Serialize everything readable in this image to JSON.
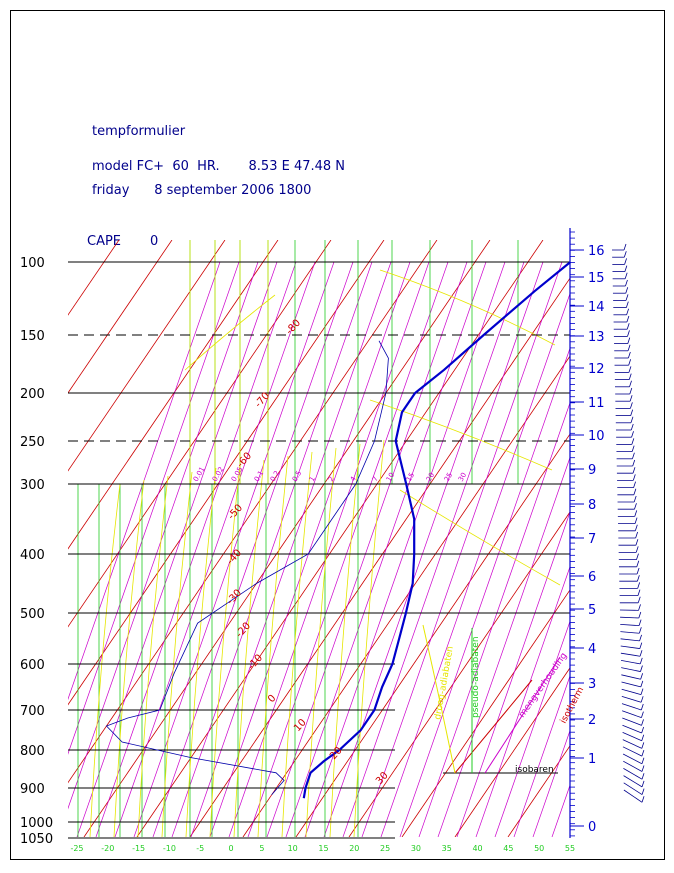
{
  "header": {
    "title": "tempformulier",
    "line2": "model FC+  60  HR.       8.53 E 47.48 N",
    "line3": "friday      8 september 2006 1800"
  },
  "cape": {
    "label": "CAPE",
    "value": "0"
  },
  "colors": {
    "isobar": "#000000",
    "isotherm": "#cc0000",
    "dry_adiabat": "#e6e600",
    "pseudo_adiabat": "#22cc22",
    "mixing_ratio": "#cc00cc",
    "temperature_profile": "#0000cc",
    "dewpoint_profile": "#0000aa",
    "height_scale": "#0000cc",
    "wind_barbs": "#00008b"
  },
  "legend": {
    "isobaren": "isobaren",
    "isotherm": "isotherm",
    "mengverhouding": "mengverhouding",
    "pseudo_adiabaten": "pseudo-adiabaten",
    "droog_adiabaten": "droog-adiabaten"
  },
  "chart_data": {
    "type": "skew-t",
    "title": "tempformulier",
    "xlabel": "",
    "ylabel": "",
    "pressure_ticks": [
      "100",
      "150",
      "200",
      "250",
      "300",
      "400",
      "500",
      "600",
      "700",
      "800",
      "900",
      "1000",
      "1050"
    ],
    "dashed_pressures": [
      "150",
      "250"
    ],
    "temperature_ticks": [
      "-25",
      "-20",
      "-15",
      "-10",
      "-5",
      "0",
      "5",
      "10",
      "15",
      "20",
      "25",
      "30",
      "35",
      "40",
      "45",
      "50",
      "55"
    ],
    "height_ticks_km": [
      "0",
      "1",
      "2",
      "3",
      "4",
      "5",
      "6",
      "7",
      "8",
      "9",
      "10",
      "11",
      "12",
      "13",
      "14",
      "15",
      "16"
    ],
    "isotherm_labels": [
      "-80",
      "-70",
      "-60",
      "-50",
      "-40",
      "-30",
      "-20",
      "-10",
      "0",
      "10",
      "20",
      "30"
    ],
    "mixing_ratio_labels": [
      "0.01",
      "0.02",
      "0.05",
      "0.1",
      "0.2",
      "0.5",
      "1",
      "2",
      "4",
      "7",
      "10",
      "15",
      "20",
      "25",
      "30"
    ],
    "temperature_profile": [
      {
        "p": 930,
        "t": 16.5
      },
      {
        "p": 900,
        "t": 15.5
      },
      {
        "p": 860,
        "t": 14.5
      },
      {
        "p": 830,
        "t": 15.5
      },
      {
        "p": 800,
        "t": 17.0
      },
      {
        "p": 750,
        "t": 18.5
      },
      {
        "p": 700,
        "t": 18.5
      },
      {
        "p": 650,
        "t": 17.0
      },
      {
        "p": 600,
        "t": 16.0
      },
      {
        "p": 550,
        "t": 14.0
      },
      {
        "p": 500,
        "t": 12.0
      },
      {
        "p": 450,
        "t": 9.5
      },
      {
        "p": 400,
        "t": 6.0
      },
      {
        "p": 350,
        "t": 1.5
      },
      {
        "p": 300,
        "t": -4.5
      },
      {
        "p": 250,
        "t": -12.0
      },
      {
        "p": 220,
        "t": -14.5
      },
      {
        "p": 200,
        "t": -14.5
      },
      {
        "p": 180,
        "t": -12.0
      },
      {
        "p": 150,
        "t": -9.0
      },
      {
        "p": 120,
        "t": -5.0
      },
      {
        "p": 100,
        "t": -2.0
      }
    ],
    "dewpoint_profile": [
      {
        "p": 920,
        "t": 10.0
      },
      {
        "p": 880,
        "t": 10.5
      },
      {
        "p": 860,
        "t": 8.0
      },
      {
        "p": 820,
        "t": -10.0
      },
      {
        "p": 780,
        "t": -25.0
      },
      {
        "p": 740,
        "t": -30.0
      },
      {
        "p": 720,
        "t": -27.0
      },
      {
        "p": 700,
        "t": -22.0
      },
      {
        "p": 620,
        "t": -24.0
      },
      {
        "p": 520,
        "t": -26.0
      },
      {
        "p": 450,
        "t": -20.0
      },
      {
        "p": 400,
        "t": -14.0
      },
      {
        "p": 350,
        "t": -14.0
      },
      {
        "p": 300,
        "t": -14.0
      },
      {
        "p": 250,
        "t": -16.0
      },
      {
        "p": 200,
        "t": -20.0
      },
      {
        "p": 170,
        "t": -24.0
      },
      {
        "p": 155,
        "t": -28.0
      }
    ]
  }
}
